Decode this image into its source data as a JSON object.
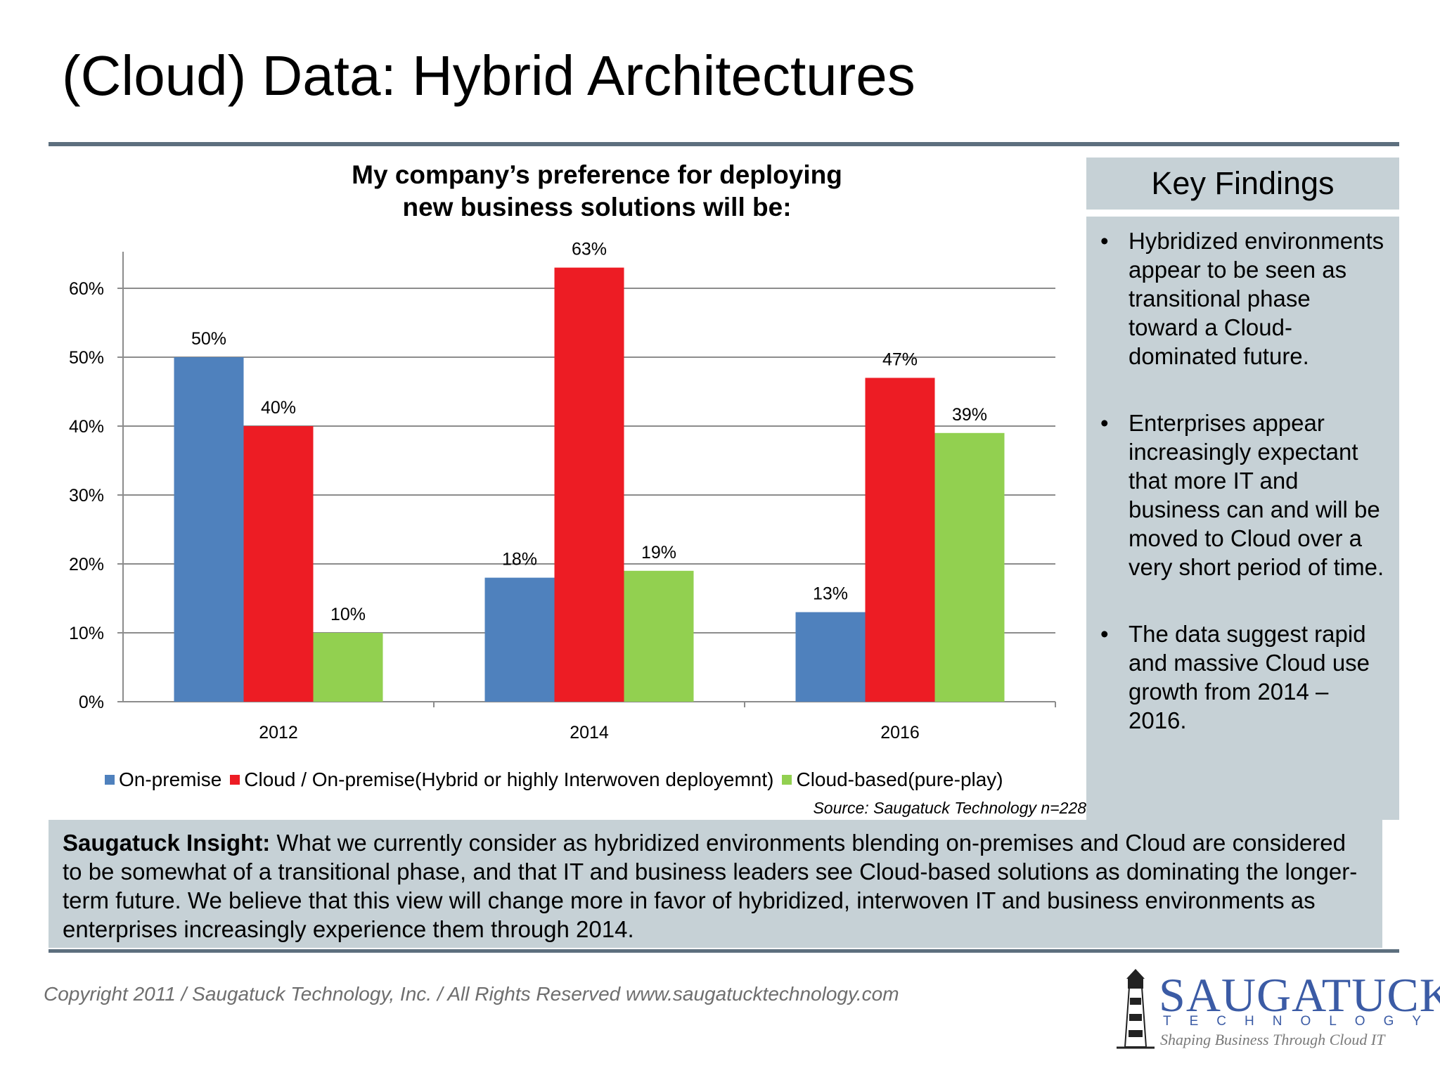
{
  "slide": {
    "title": "(Cloud) Data: Hybrid Architectures",
    "copyright": "Copyright 2011  /  Saugatuck Technology, Inc.  /  All Rights Reserved  www.saugatucktechnology.com"
  },
  "chart_data": {
    "type": "bar",
    "title_lines": [
      "My company’s preference for deploying",
      "new business solutions will be:"
    ],
    "categories": [
      "2012",
      "2014",
      "2016"
    ],
    "series": [
      {
        "name": "On-premise",
        "color": "#4f81bd",
        "values": [
          50,
          18,
          13
        ]
      },
      {
        "name": "Cloud / On-premise(Hybrid or highly Interwoven deployemnt)",
        "color": "#ed1c24",
        "values": [
          40,
          63,
          47
        ]
      },
      {
        "name": "Cloud-based(pure-play)",
        "color": "#92d050",
        "values": [
          10,
          19,
          39
        ]
      }
    ],
    "data_labels": [
      [
        "50%",
        "18%",
        "13%"
      ],
      [
        "40%",
        "63%",
        "47%"
      ],
      [
        "10%",
        "19%",
        "39%"
      ]
    ],
    "y_ticks": [
      "0%",
      "10%",
      "20%",
      "30%",
      "40%",
      "50%",
      "60%"
    ],
    "ylim": [
      0,
      65
    ],
    "grid": true,
    "legend_position": "bottom",
    "source": "Source: Saugatuck Technology n=228"
  },
  "findings": {
    "header": "Key Findings",
    "bullet": "•",
    "items": [
      "Hybridized environments appear to be seen as transitional phase toward a Cloud-dominated future.",
      "Enterprises appear increasingly expectant that more IT and business can and will be moved to Cloud over a very short period of time.",
      "The data suggest rapid and massive Cloud use growth from 2014 – 2016."
    ]
  },
  "insight": {
    "label": "Saugatuck Insight:",
    "text": "What we currently consider as hybridized environments blending on-premises and Cloud are considered to be somewhat of a transitional phase, and that IT and business leaders see Cloud-based solutions as dominating the longer-term  future. We believe that this view will change more in favor of hybridized, interwoven IT and business environments as enterprises increasingly experience them through 2014."
  },
  "logo": {
    "word": "SAUGATUCK",
    "sub": "TECHNOLOGY",
    "tagline": "Shaping Business Through Cloud IT"
  }
}
